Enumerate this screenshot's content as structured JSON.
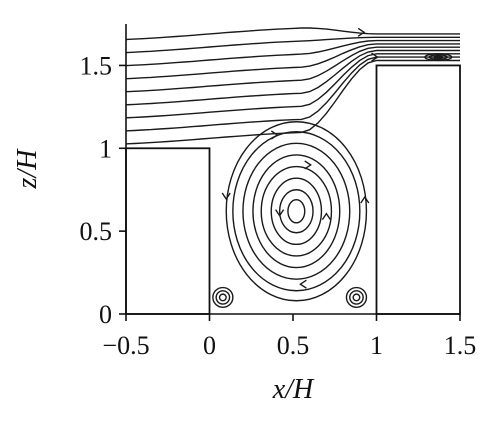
{
  "chart_data": {
    "type": "streamline",
    "xlabel": "x/H",
    "ylabel": "z/H",
    "xlim": [
      -0.5,
      1.5
    ],
    "ylim": [
      0,
      1.75
    ],
    "xticks": [
      -0.5,
      0,
      0.5,
      1,
      1.5
    ],
    "xtick_labels": [
      "−0.5",
      "0",
      "0.5",
      "1",
      "1.5"
    ],
    "yticks": [
      0,
      0.5,
      1,
      1.5
    ],
    "ytick_labels": [
      "0",
      "0.5",
      "1",
      "1.5"
    ],
    "grid": false,
    "buildings": [
      {
        "x0": -0.5,
        "x1": 0,
        "height": 1.0
      },
      {
        "x0": 1.0,
        "x1": 1.5,
        "height": 1.5
      }
    ],
    "main_vortex_center": [
      0.58,
      0.66
    ],
    "secondary_vortices": [
      {
        "center": [
          0.08,
          0.1
        ]
      },
      {
        "center": [
          0.88,
          0.1
        ]
      },
      {
        "center": [
          1.37,
          1.55
        ]
      }
    ]
  }
}
